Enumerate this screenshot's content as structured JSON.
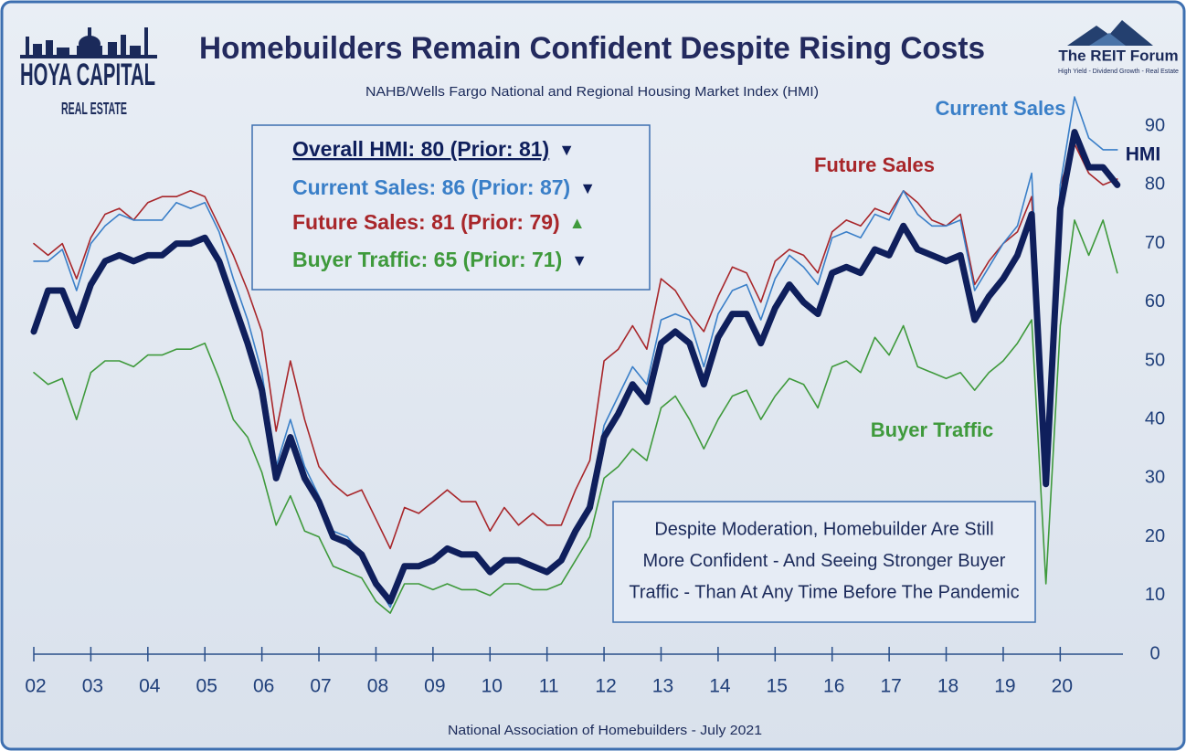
{
  "chart_data": {
    "type": "line",
    "title": "Homebuilders Remain Confident Despite Rising Costs",
    "subtitle": "NAHB/Wells Fargo National and Regional Housing Market Index (HMI)",
    "source": "National Association of Homebuilders - July 2021",
    "logo_left": [
      "HOYA CAPITAL",
      "REAL ESTATE"
    ],
    "logo_right": [
      "The REIT Forum",
      "High Yield - Dividend Growth - Real Estate"
    ],
    "summary": [
      {
        "text": "Overall HMI: 80 (Prior: 81)",
        "arrow": "▼"
      },
      {
        "text": "Current Sales: 86 (Prior: 87)",
        "arrow": "▼"
      },
      {
        "text": "Future Sales: 81 (Prior: 79)",
        "arrow": "▲"
      },
      {
        "text": "Buyer Traffic: 65 (Prior: 71)",
        "arrow": "▼"
      }
    ],
    "annotation": [
      "Despite Moderation, Homebuilder Are Still",
      "More Confident - And Seeing Stronger Buyer",
      "Traffic - Than At Any Time Before The Pandemic"
    ],
    "x": [
      2002,
      2002.25,
      2002.5,
      2002.75,
      2003,
      2003.25,
      2003.5,
      2003.75,
      2004,
      2004.25,
      2004.5,
      2004.75,
      2005,
      2005.25,
      2005.5,
      2005.75,
      2006,
      2006.25,
      2006.5,
      2006.75,
      2007,
      2007.25,
      2007.5,
      2007.75,
      2008,
      2008.25,
      2008.5,
      2008.75,
      2009,
      2009.25,
      2009.5,
      2009.75,
      2010,
      2010.25,
      2010.5,
      2010.75,
      2011,
      2011.25,
      2011.5,
      2011.75,
      2012,
      2012.25,
      2012.5,
      2012.75,
      2013,
      2013.25,
      2013.5,
      2013.75,
      2014,
      2014.25,
      2014.5,
      2014.75,
      2015,
      2015.25,
      2015.5,
      2015.75,
      2016,
      2016.25,
      2016.5,
      2016.75,
      2017,
      2017.25,
      2017.5,
      2017.75,
      2018,
      2018.25,
      2018.5,
      2018.75,
      2019,
      2019.25,
      2019.5,
      2019.75,
      2020,
      2020.25,
      2020.5,
      2020.75,
      2021
    ],
    "series": [
      {
        "name": "HMI",
        "color": "#0f1f5c",
        "values": [
          55,
          62,
          62,
          56,
          63,
          67,
          68,
          67,
          68,
          68,
          70,
          70,
          71,
          67,
          60,
          53,
          45,
          30,
          37,
          30,
          26,
          20,
          19,
          17,
          12,
          9,
          15,
          15,
          16,
          18,
          17,
          17,
          14,
          16,
          16,
          15,
          14,
          16,
          21,
          25,
          37,
          41,
          46,
          43,
          53,
          55,
          53,
          46,
          54,
          58,
          58,
          53,
          59,
          63,
          60,
          58,
          65,
          66,
          65,
          69,
          68,
          73,
          69,
          68,
          67,
          68,
          57,
          61,
          64,
          68,
          75,
          29,
          76,
          89,
          83,
          83,
          80
        ]
      },
      {
        "name": "Current Sales",
        "color": "#3a7fc8",
        "values": [
          67,
          67,
          69,
          62,
          70,
          73,
          75,
          74,
          74,
          74,
          77,
          76,
          77,
          72,
          64,
          57,
          48,
          32,
          40,
          32,
          27,
          21,
          20,
          17,
          12,
          8,
          15,
          15,
          16,
          18,
          17,
          17,
          14,
          16,
          16,
          15,
          14,
          16,
          21,
          26,
          39,
          44,
          49,
          46,
          57,
          58,
          57,
          49,
          58,
          62,
          63,
          57,
          64,
          68,
          66,
          63,
          71,
          72,
          71,
          75,
          74,
          79,
          75,
          73,
          73,
          74,
          62,
          66,
          70,
          73,
          82,
          34,
          80,
          95,
          88,
          86,
          86
        ]
      },
      {
        "name": "Future Sales",
        "color": "#a8262a",
        "values": [
          70,
          68,
          70,
          64,
          71,
          75,
          76,
          74,
          77,
          78,
          78,
          79,
          78,
          73,
          68,
          62,
          55,
          38,
          50,
          40,
          32,
          29,
          27,
          28,
          23,
          18,
          25,
          24,
          26,
          28,
          26,
          26,
          21,
          25,
          22,
          24,
          22,
          22,
          28,
          33,
          50,
          52,
          56,
          52,
          64,
          62,
          58,
          55,
          61,
          66,
          65,
          60,
          67,
          69,
          68,
          65,
          72,
          74,
          73,
          76,
          75,
          79,
          77,
          74,
          73,
          75,
          63,
          67,
          70,
          72,
          78,
          34,
          80,
          87,
          82,
          80,
          81
        ]
      },
      {
        "name": "Buyer Traffic",
        "color": "#3f9a3c",
        "values": [
          48,
          46,
          47,
          40,
          48,
          50,
          50,
          49,
          51,
          51,
          52,
          52,
          53,
          47,
          40,
          37,
          31,
          22,
          27,
          21,
          20,
          15,
          14,
          13,
          9,
          7,
          12,
          12,
          11,
          12,
          11,
          11,
          10,
          12,
          12,
          11,
          11,
          12,
          16,
          20,
          30,
          32,
          35,
          33,
          42,
          44,
          40,
          35,
          40,
          44,
          45,
          40,
          44,
          47,
          46,
          42,
          49,
          50,
          48,
          54,
          51,
          56,
          49,
          48,
          47,
          48,
          45,
          48,
          50,
          53,
          57,
          12,
          56,
          74,
          68,
          74,
          65
        ]
      }
    ],
    "xlim": [
      2002,
      2021.1
    ],
    "xticks": [
      {
        "value": 2002,
        "label": "02"
      },
      {
        "value": 2003,
        "label": "03"
      },
      {
        "value": 2004,
        "label": "04"
      },
      {
        "value": 2005,
        "label": "05"
      },
      {
        "value": 2006,
        "label": "06"
      },
      {
        "value": 2007,
        "label": "07"
      },
      {
        "value": 2008,
        "label": "08"
      },
      {
        "value": 2009,
        "label": "09"
      },
      {
        "value": 2010,
        "label": "10"
      },
      {
        "value": 2011,
        "label": "11"
      },
      {
        "value": 2012,
        "label": "12"
      },
      {
        "value": 2013,
        "label": "13"
      },
      {
        "value": 2014,
        "label": "14"
      },
      {
        "value": 2015,
        "label": "15"
      },
      {
        "value": 2016,
        "label": "16"
      },
      {
        "value": 2017,
        "label": "17"
      },
      {
        "value": 2018,
        "label": "18"
      },
      {
        "value": 2019,
        "label": "19"
      },
      {
        "value": 2020,
        "label": "20"
      }
    ],
    "ylim": [
      0,
      95
    ],
    "yticks": [
      0,
      10,
      20,
      30,
      40,
      50,
      60,
      70,
      80,
      90
    ]
  }
}
